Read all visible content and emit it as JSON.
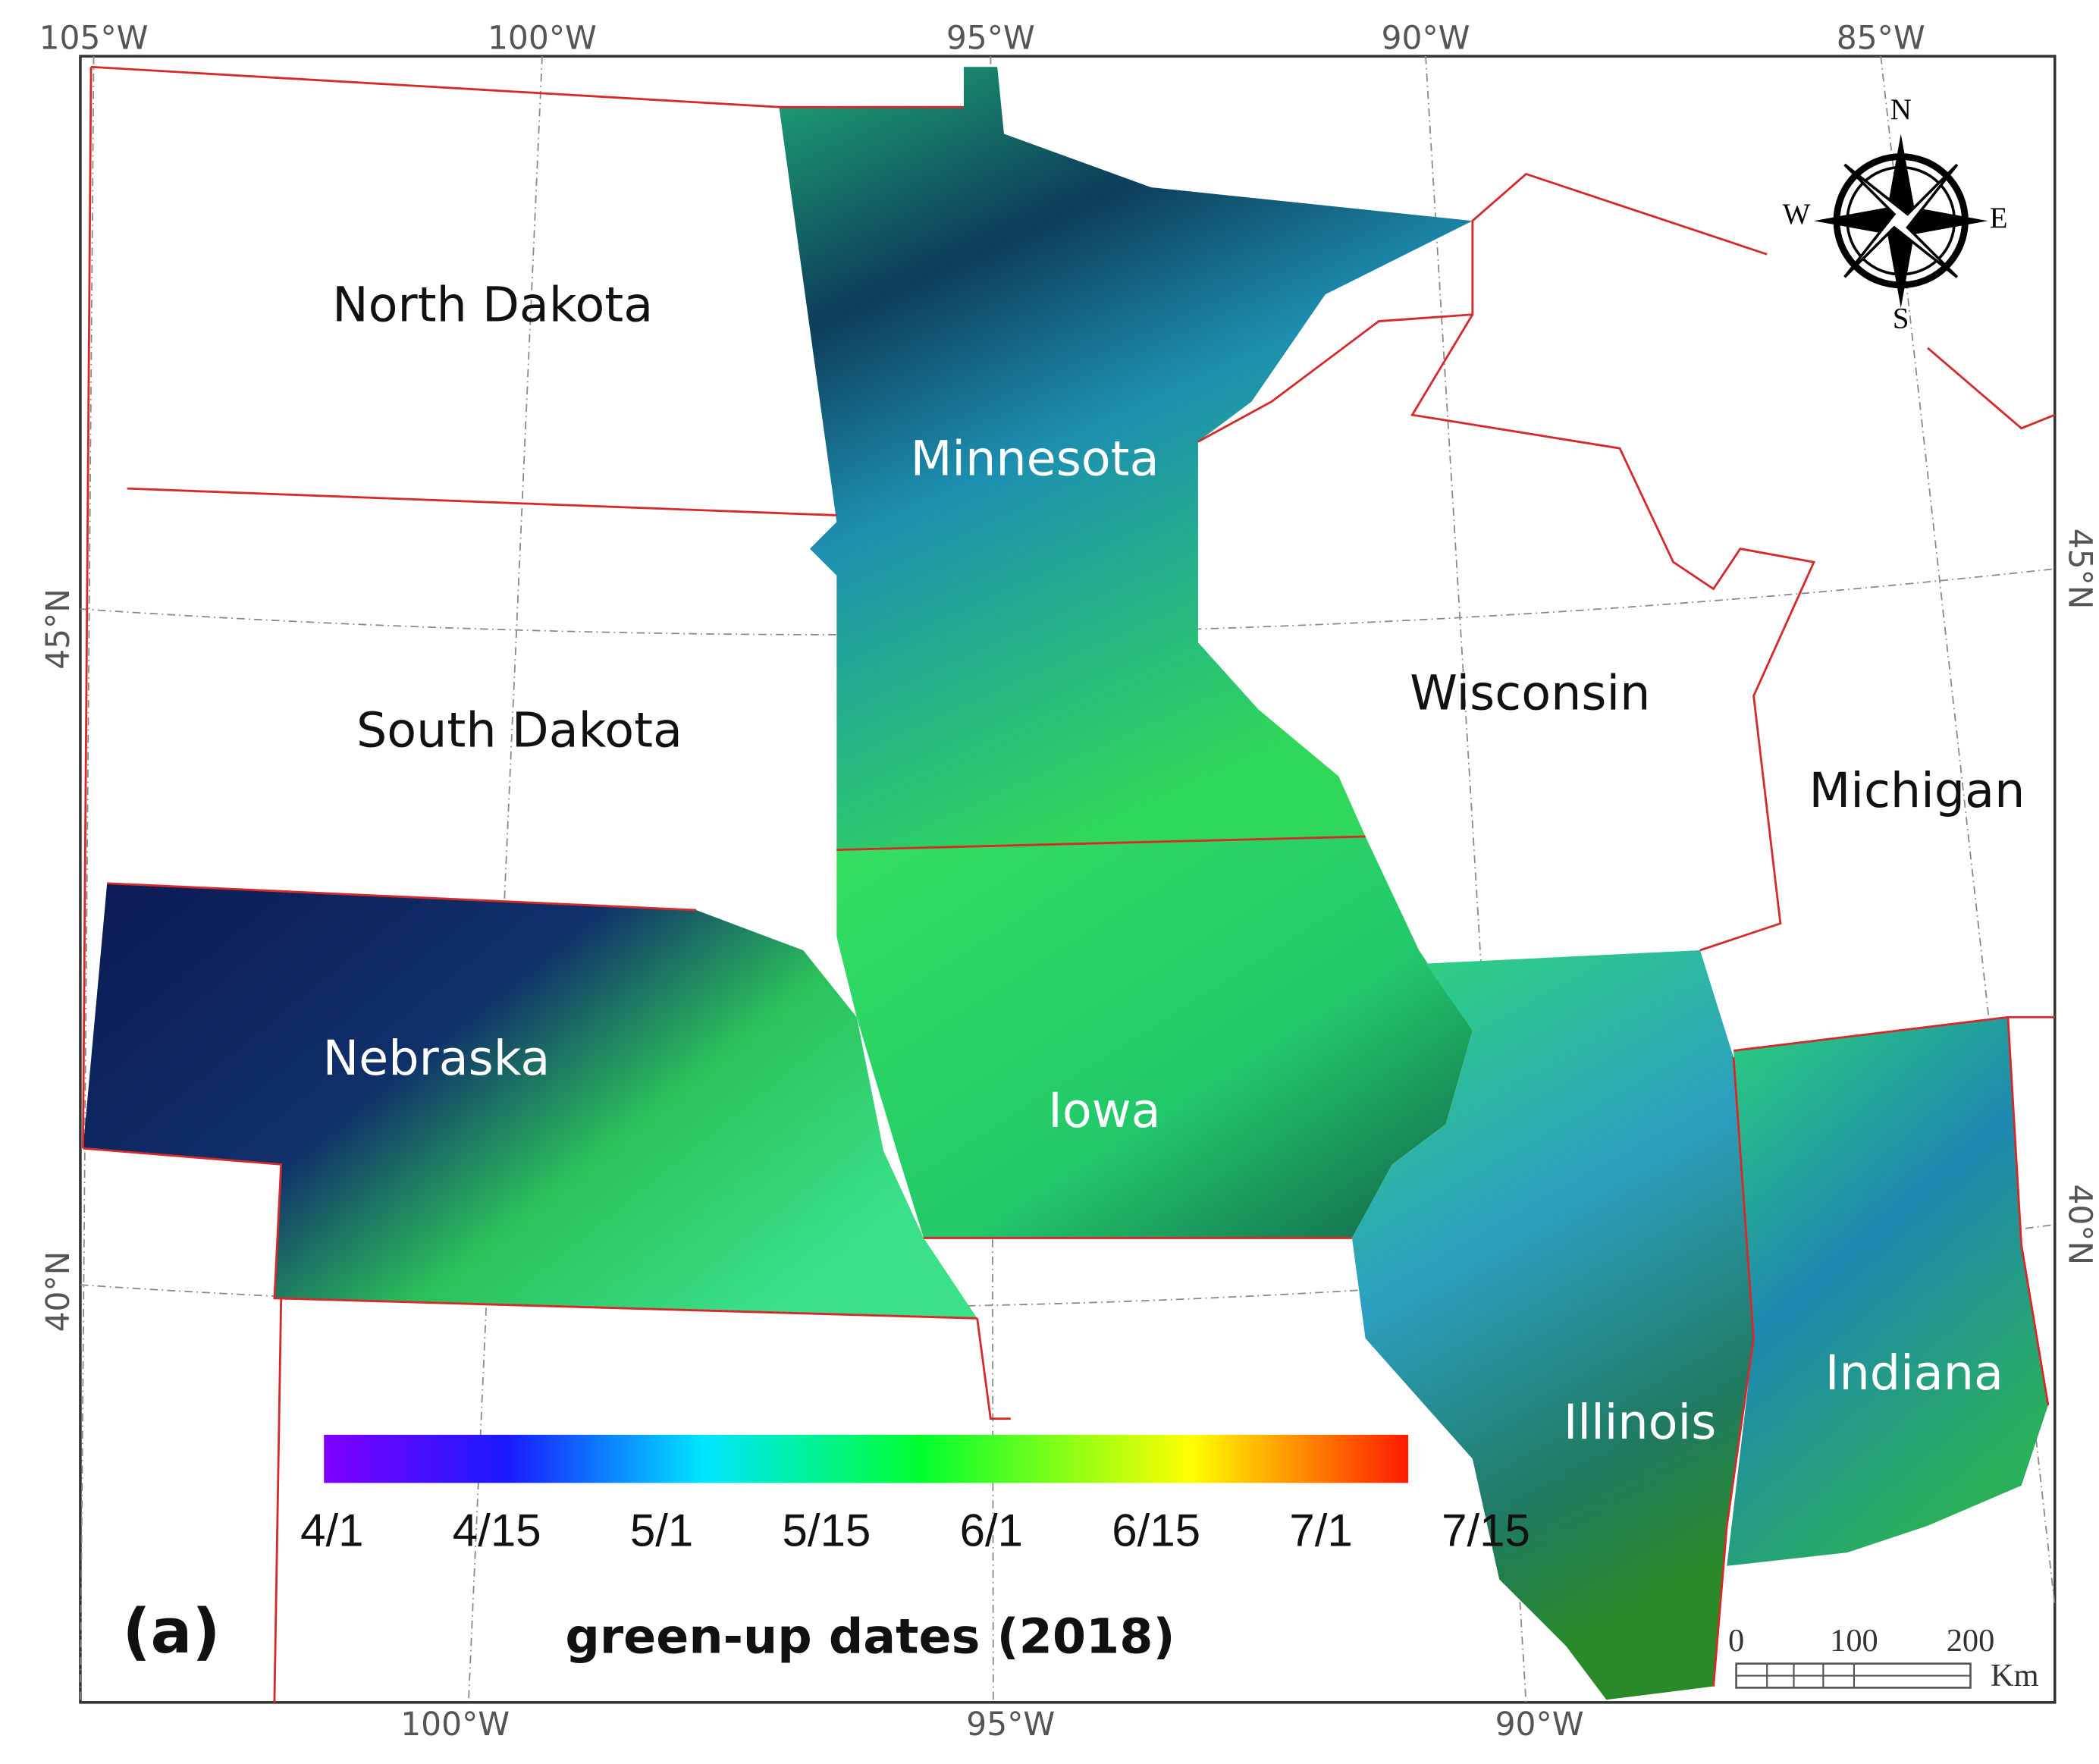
{
  "graticule": {
    "top_longitudes": [
      "105°W",
      "100°W",
      "95°W",
      "90°W",
      "85°W"
    ],
    "bottom_longitudes": [
      "100°W",
      "95°W",
      "90°W"
    ],
    "left_latitudes": [
      "45°N",
      "40°N"
    ],
    "right_latitudes": [
      "45°N",
      "40°N"
    ]
  },
  "states": [
    "North Dakota",
    "Minnesota",
    "South Dakota",
    "Wisconsin",
    "Michigan",
    "Nebraska",
    "Iowa",
    "Illinois",
    "Indiana"
  ],
  "compass": {
    "north": "N",
    "south": "S",
    "west": "W",
    "east": "E"
  },
  "panel_label": "(a)",
  "colorbar": {
    "title": "green-up dates (2018)",
    "tick_labels": [
      "4/1",
      "4/15",
      "5/1",
      "5/15",
      "6/1",
      "6/15",
      "7/1",
      "7/15"
    ]
  },
  "scale_bar": {
    "tick_labels": [
      "0",
      "100",
      "200"
    ],
    "unit": "Km"
  }
}
